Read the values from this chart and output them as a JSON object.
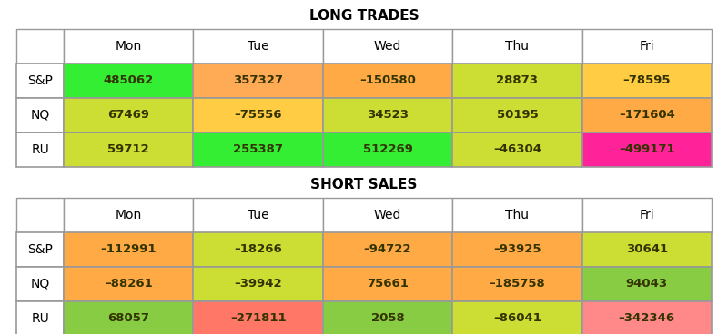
{
  "long_title": "LONG TRADES",
  "short_title": "SHORT SALES",
  "columns": [
    "Mon",
    "Tue",
    "Wed",
    "Thu",
    "Fri"
  ],
  "rows": [
    "S&P",
    "NQ",
    "RU"
  ],
  "long_values": [
    [
      "485062",
      "357327",
      "–150580",
      "28873",
      "–78595"
    ],
    [
      "67469",
      "–75556",
      "34523",
      "50195",
      "–171604"
    ],
    [
      "59712",
      "255387",
      "512269",
      "–46304",
      "–499171"
    ]
  ],
  "short_values": [
    [
      "–112991",
      "–18266",
      "–94722",
      "–93925",
      "30641"
    ],
    [
      "–88261",
      "–39942",
      "75661",
      "–185758",
      "94043"
    ],
    [
      "68057",
      "–271811",
      "2058",
      "–86041",
      "–342346"
    ]
  ],
  "long_colors": [
    [
      "#33ee33",
      "#ffaa55",
      "#ffaa44",
      "#ccdd33",
      "#ffcc44"
    ],
    [
      "#ccdd33",
      "#ffcc44",
      "#ccdd33",
      "#ccdd33",
      "#ffaa44"
    ],
    [
      "#ccdd33",
      "#33ee33",
      "#33ee33",
      "#ccdd33",
      "#ff2299"
    ]
  ],
  "short_colors": [
    [
      "#ffaa44",
      "#ccdd33",
      "#ffaa44",
      "#ffaa44",
      "#ccdd33"
    ],
    [
      "#ffaa44",
      "#ccdd33",
      "#ffaa44",
      "#ffaa44",
      "#88cc44"
    ],
    [
      "#88cc44",
      "#ff7766",
      "#88cc44",
      "#ccdd33",
      "#ff8888"
    ]
  ],
  "bg_color": "#ffffff",
  "text_color": "#333300",
  "header_bg": "#ffffff",
  "border_color": "#999999",
  "title_fontsize": 11,
  "header_fontsize": 10,
  "cell_fontsize": 9.5,
  "row_label_fontsize": 10
}
